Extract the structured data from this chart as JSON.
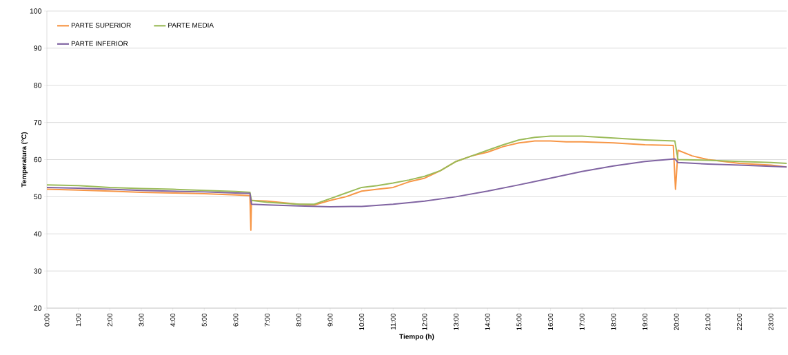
{
  "chart_data": {
    "type": "line",
    "xlabel": "Tiempo (h)",
    "ylabel": "Temperatura (°C)",
    "xlim": [
      0,
      23.5
    ],
    "ylim": [
      20,
      100
    ],
    "xticks": [
      {
        "value": 0,
        "label": "0:00"
      },
      {
        "value": 1,
        "label": "1:00"
      },
      {
        "value": 2,
        "label": "2:00"
      },
      {
        "value": 3,
        "label": "3:00"
      },
      {
        "value": 4,
        "label": "4:00"
      },
      {
        "value": 5,
        "label": "5:00"
      },
      {
        "value": 6,
        "label": "6:00"
      },
      {
        "value": 7,
        "label": "7:00"
      },
      {
        "value": 8,
        "label": "8:00"
      },
      {
        "value": 9,
        "label": "9:00"
      },
      {
        "value": 10,
        "label": "10:00"
      },
      {
        "value": 11,
        "label": "11:00"
      },
      {
        "value": 12,
        "label": "12:00"
      },
      {
        "value": 13,
        "label": "13:00"
      },
      {
        "value": 14,
        "label": "14:00"
      },
      {
        "value": 15,
        "label": "15:00"
      },
      {
        "value": 16,
        "label": "16:00"
      },
      {
        "value": 17,
        "label": "17:00"
      },
      {
        "value": 18,
        "label": "18:00"
      },
      {
        "value": 19,
        "label": "19:00"
      },
      {
        "value": 20,
        "label": "20:00"
      },
      {
        "value": 21,
        "label": "21:00"
      },
      {
        "value": 22,
        "label": "22:00"
      },
      {
        "value": 23,
        "label": "23:00"
      }
    ],
    "yticks": [
      20,
      30,
      40,
      50,
      60,
      70,
      80,
      90,
      100
    ],
    "grid": "y",
    "legend": "top left",
    "series": [
      {
        "name": "PARTE SUPERIOR",
        "color": "#f79646",
        "x": [
          0,
          1,
          2,
          3,
          4,
          5,
          6,
          6.45,
          6.48,
          6.5,
          7,
          8,
          8.5,
          9,
          9.5,
          10,
          10.5,
          11,
          11.5,
          12,
          12.5,
          13,
          13.5,
          14,
          14.5,
          15,
          15.5,
          16,
          16.5,
          17,
          18,
          19,
          19.9,
          19.97,
          20.05,
          20.5,
          21,
          22,
          23,
          23.5
        ],
        "values": [
          52,
          51.8,
          51.5,
          51.2,
          51,
          50.8,
          50.5,
          50.3,
          41,
          49,
          48.8,
          48,
          47.8,
          49,
          50,
          51.5,
          52,
          52.5,
          54,
          55,
          57,
          59.5,
          61,
          62,
          63.5,
          64.5,
          65,
          65,
          64.8,
          64.8,
          64.5,
          64,
          63.8,
          52,
          62.5,
          61,
          60,
          59,
          58.5,
          58
        ]
      },
      {
        "name": "PARTE MEDIA",
        "color": "#9bbb59",
        "x": [
          0,
          1,
          2,
          3,
          4,
          5,
          6,
          6.45,
          6.5,
          7,
          8,
          8.5,
          9,
          9.5,
          10,
          10.5,
          11,
          11.5,
          12,
          12.5,
          13,
          13.5,
          14,
          14.5,
          15,
          15.5,
          16,
          17,
          18,
          19,
          19.95,
          20.05,
          21,
          22,
          23,
          23.5
        ],
        "values": [
          53.2,
          53,
          52.5,
          52.2,
          52,
          51.7,
          51.4,
          51.2,
          49,
          48.5,
          48,
          48,
          49.5,
          51,
          52.5,
          53,
          53.7,
          54.5,
          55.5,
          57,
          59.5,
          61,
          62.5,
          64,
          65.3,
          66,
          66.3,
          66.3,
          65.8,
          65.3,
          65,
          60,
          59.8,
          59.5,
          59.2,
          59
        ]
      },
      {
        "name": "PARTE INFERIOR",
        "color": "#8064a2",
        "x": [
          0,
          1,
          2,
          3,
          4,
          5,
          6,
          6.45,
          6.5,
          7,
          8,
          9,
          10,
          11,
          12,
          13,
          14,
          15,
          16,
          17,
          18,
          19,
          19.95,
          20.05,
          21,
          22,
          23,
          23.5
        ],
        "values": [
          52.5,
          52.3,
          52,
          51.7,
          51.5,
          51.3,
          51,
          50.9,
          48,
          47.8,
          47.5,
          47.3,
          47.4,
          48,
          48.8,
          50,
          51.5,
          53.2,
          55,
          56.8,
          58.3,
          59.5,
          60.2,
          59.2,
          58.8,
          58.5,
          58.2,
          58
        ]
      }
    ]
  }
}
